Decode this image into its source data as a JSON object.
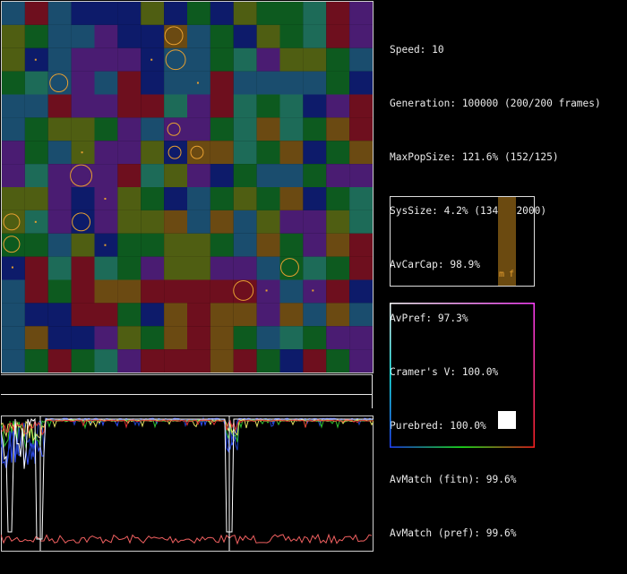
{
  "stats": {
    "speed": "Speed: 10",
    "generation": "Generation: 100000 (200/200 frames)",
    "max_pop_size": "MaxPopSize: 121.6% (152/125)",
    "sys_size": "SysSize: 4.2% (1341/32000)",
    "av_car_cap": "AvCarCap: 98.9%",
    "av_pref": "AvPref: 97.3%",
    "cramers_v": "Cramer's V: 100.0%",
    "purebred": "Purebred: 100.0%",
    "av_match_fitn": "AvMatch (fitn): 99.6%",
    "av_match_pref": "AvMatch (pref): 99.6%"
  },
  "histogram": {
    "label_m": "m",
    "label_f": "f",
    "bar_color": "#6b4a10"
  },
  "preference_square": {
    "marker_color": "#ffffff"
  },
  "palette": {
    "maroon": "#6e0f1e",
    "olive": "#4f5e12",
    "teal": "#1d6b58",
    "green": "#0d5a1f",
    "navy": "#0d1b6a",
    "steel": "#1a4d6e",
    "purple": "#4a1c72",
    "brown": "#6b4a12",
    "ring": "#e8a030"
  },
  "colors": {
    "overlay": "#ffffff"
  }
}
